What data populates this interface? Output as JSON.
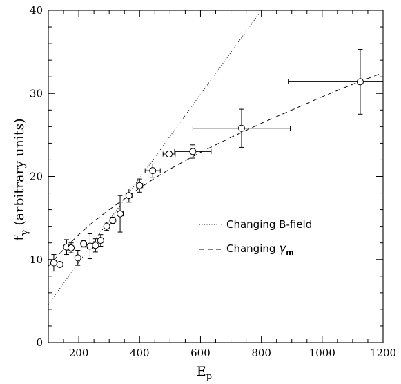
{
  "chart_data": {
    "type": "scatter",
    "xlabel": "E",
    "xlabel_sub": "p",
    "ylabel": "f",
    "ylabel_sub": "γ",
    "ylabel_suffix": "(arbitrary units)",
    "xlim": [
      100,
      1200
    ],
    "ylim": [
      0,
      40
    ],
    "x_ticks": [
      200,
      400,
      600,
      800,
      1000,
      1200
    ],
    "y_ticks": [
      0,
      10,
      20,
      30,
      40
    ],
    "grid": false,
    "legend_position": "center-right",
    "series": [
      {
        "style": "points-with-errorbars",
        "marker": "circle",
        "points": [
          {
            "x": 118,
            "y": 9.6,
            "xerr": 8,
            "yerr": 1.0
          },
          {
            "x": 138,
            "y": 9.4,
            "xerr": 6,
            "yerr": 0.3
          },
          {
            "x": 160,
            "y": 11.5,
            "xerr": 8,
            "yerr": 0.9
          },
          {
            "x": 175,
            "y": 11.4,
            "xerr": 8,
            "yerr": 0.6
          },
          {
            "x": 197,
            "y": 10.2,
            "xerr": 8,
            "yerr": 0.9
          },
          {
            "x": 216,
            "y": 11.9,
            "xerr": 7,
            "yerr": 0.4
          },
          {
            "x": 237,
            "y": 11.6,
            "xerr": 9,
            "yerr": 1.5
          },
          {
            "x": 255,
            "y": 11.7,
            "xerr": 8,
            "yerr": 0.8
          },
          {
            "x": 272,
            "y": 12.3,
            "xerr": 7,
            "yerr": 0.7
          },
          {
            "x": 292,
            "y": 14.0,
            "xerr": 8,
            "yerr": 0.5
          },
          {
            "x": 312,
            "y": 14.7,
            "xerr": 8,
            "yerr": 0.4
          },
          {
            "x": 336,
            "y": 15.5,
            "xerr": 10,
            "yerr": 2.2
          },
          {
            "x": 365,
            "y": 17.7,
            "xerr": 10,
            "yerr": 0.8
          },
          {
            "x": 400,
            "y": 18.9,
            "xerr": 10,
            "yerr": 0.8
          },
          {
            "x": 443,
            "y": 20.7,
            "xerr": 25,
            "yerr": 0.8
          },
          {
            "x": 497,
            "y": 22.7,
            "xerr": 20,
            "yerr": 0.3
          },
          {
            "x": 575,
            "y": 23.0,
            "xerr": 60,
            "yerr": 0.8
          },
          {
            "x": 735,
            "y": 25.8,
            "xerr": 160,
            "yerr": 2.3
          },
          {
            "x": 1125,
            "y": 31.4,
            "xerr": 235,
            "yerr": 3.9
          }
        ]
      },
      {
        "name": "Changing B-field",
        "style": "dotted",
        "points": [
          {
            "x": 100,
            "y": 4.6
          },
          {
            "x": 800,
            "y": 40.0
          }
        ]
      },
      {
        "name": "Changing γm",
        "style": "dashed",
        "points": [
          {
            "x": 100,
            "y": 9.2
          },
          {
            "x": 150,
            "y": 11.2
          },
          {
            "x": 200,
            "y": 13.0
          },
          {
            "x": 250,
            "y": 14.6
          },
          {
            "x": 300,
            "y": 16.0
          },
          {
            "x": 350,
            "y": 17.3
          },
          {
            "x": 400,
            "y": 18.6
          },
          {
            "x": 450,
            "y": 19.8
          },
          {
            "x": 500,
            "y": 20.9
          },
          {
            "x": 600,
            "y": 22.9
          },
          {
            "x": 700,
            "y": 24.7
          },
          {
            "x": 800,
            "y": 26.4
          },
          {
            "x": 900,
            "y": 28.0
          },
          {
            "x": 1000,
            "y": 29.6
          },
          {
            "x": 1100,
            "y": 31.1
          },
          {
            "x": 1200,
            "y": 32.5
          }
        ]
      }
    ],
    "legend": [
      {
        "label_text": "Changing B-field",
        "style": "dotted"
      },
      {
        "label_text": "Changing ",
        "label_greek": "γ",
        "label_sub": "m",
        "style": "dashed"
      }
    ]
  }
}
